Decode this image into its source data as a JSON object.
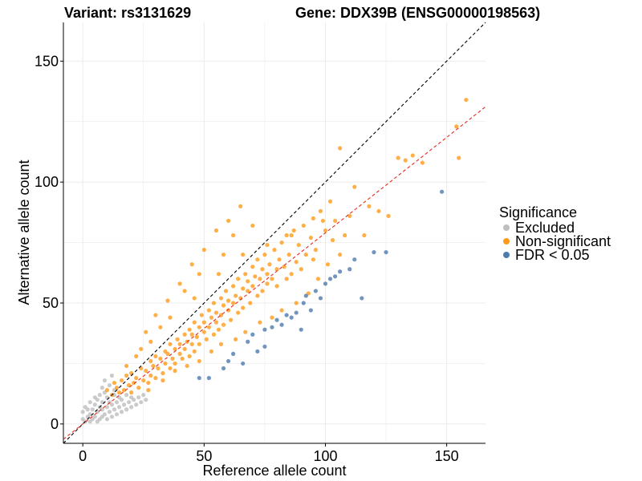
{
  "chart_data": {
    "type": "scatter",
    "title_left": "Variant: rs3131629",
    "title_right": "Gene: DDX39B (ENSG00000198563)",
    "xlabel": "Reference allele count",
    "ylabel": "Alternative allele count",
    "xlim": [
      -8,
      166
    ],
    "ylim": [
      -8,
      166
    ],
    "xticks": [
      0,
      50,
      100,
      150
    ],
    "yticks": [
      0,
      50,
      100,
      150
    ],
    "grid": true,
    "legend": {
      "title": "Significance",
      "placement": "right",
      "entries": [
        {
          "name": "Excluded",
          "color": "#BEBEBE"
        },
        {
          "name": "Non-significant",
          "color": "#FF9B19"
        },
        {
          "name": "FDR < 0.05",
          "color": "#4E7BAE"
        }
      ]
    },
    "reference_lines": [
      {
        "name": "identity",
        "color": "#000000",
        "dash": "dashed",
        "slope": 1.0,
        "intercept": 0
      },
      {
        "name": "fitted",
        "color": "#E8281E",
        "dash": "dashed",
        "slope": 0.79,
        "intercept": 0
      }
    ],
    "series": [
      {
        "name": "Excluded",
        "color": "#BEBEBE",
        "points": [
          [
            0,
            2
          ],
          [
            0,
            5
          ],
          [
            1,
            1
          ],
          [
            1,
            7
          ],
          [
            2,
            3
          ],
          [
            2,
            6
          ],
          [
            3,
            1
          ],
          [
            3,
            4
          ],
          [
            3,
            9
          ],
          [
            4,
            2
          ],
          [
            4,
            6
          ],
          [
            5,
            3
          ],
          [
            5,
            8
          ],
          [
            5,
            11
          ],
          [
            6,
            1
          ],
          [
            6,
            5
          ],
          [
            6,
            10
          ],
          [
            7,
            2
          ],
          [
            7,
            7
          ],
          [
            7,
            12
          ],
          [
            8,
            3
          ],
          [
            8,
            6
          ],
          [
            8,
            9
          ],
          [
            9,
            4
          ],
          [
            9,
            13
          ],
          [
            10,
            2
          ],
          [
            10,
            7
          ],
          [
            10,
            11
          ],
          [
            11,
            5
          ],
          [
            11,
            9
          ],
          [
            12,
            3
          ],
          [
            12,
            8
          ],
          [
            13,
            6
          ],
          [
            13,
            12
          ],
          [
            14,
            4
          ],
          [
            14,
            9
          ],
          [
            15,
            7
          ],
          [
            15,
            11
          ],
          [
            16,
            5
          ],
          [
            16,
            10
          ],
          [
            17,
            8
          ],
          [
            18,
            6
          ],
          [
            18,
            12
          ],
          [
            19,
            9
          ],
          [
            20,
            7
          ],
          [
            20,
            11
          ],
          [
            21,
            10
          ],
          [
            22,
            8
          ],
          [
            23,
            11
          ],
          [
            24,
            9
          ],
          [
            25,
            12
          ],
          [
            26,
            10
          ],
          [
            8,
            15
          ],
          [
            9,
            18
          ],
          [
            11,
            16
          ],
          [
            13,
            14
          ],
          [
            12,
            20
          ]
        ]
      },
      {
        "name": "Non-significant",
        "color": "#FF9B19",
        "points": [
          [
            10,
            14
          ],
          [
            12,
            12
          ],
          [
            13,
            17
          ],
          [
            14,
            15
          ],
          [
            15,
            13
          ],
          [
            16,
            18
          ],
          [
            17,
            14
          ],
          [
            18,
            20
          ],
          [
            19,
            16
          ],
          [
            20,
            13
          ],
          [
            20,
            21
          ],
          [
            21,
            17
          ],
          [
            22,
            19
          ],
          [
            23,
            15
          ],
          [
            24,
            23
          ],
          [
            25,
            18
          ],
          [
            26,
            22
          ],
          [
            27,
            17
          ],
          [
            28,
            26
          ],
          [
            28,
            20
          ],
          [
            29,
            24
          ],
          [
            30,
            19
          ],
          [
            30,
            28
          ],
          [
            31,
            23
          ],
          [
            32,
            27
          ],
          [
            33,
            21
          ],
          [
            34,
            30
          ],
          [
            34,
            25
          ],
          [
            35,
            29
          ],
          [
            36,
            23
          ],
          [
            36,
            33
          ],
          [
            37,
            27
          ],
          [
            38,
            31
          ],
          [
            38,
            25
          ],
          [
            39,
            35
          ],
          [
            40,
            29
          ],
          [
            40,
            33
          ],
          [
            41,
            27
          ],
          [
            42,
            37
          ],
          [
            42,
            31
          ],
          [
            43,
            34
          ],
          [
            44,
            28
          ],
          [
            44,
            39
          ],
          [
            45,
            33
          ],
          [
            45,
            37
          ],
          [
            46,
            30
          ],
          [
            46,
            42
          ],
          [
            47,
            36
          ],
          [
            48,
            40
          ],
          [
            48,
            33
          ],
          [
            49,
            45
          ],
          [
            50,
            38
          ],
          [
            50,
            42
          ],
          [
            51,
            35
          ],
          [
            52,
            47
          ],
          [
            52,
            40
          ],
          [
            53,
            44
          ],
          [
            54,
            37
          ],
          [
            54,
            50
          ],
          [
            55,
            42
          ],
          [
            55,
            46
          ],
          [
            56,
            39
          ],
          [
            57,
            52
          ],
          [
            57,
            45
          ],
          [
            58,
            49
          ],
          [
            58,
            41
          ],
          [
            59,
            55
          ],
          [
            60,
            47
          ],
          [
            60,
            51
          ],
          [
            61,
            43
          ],
          [
            62,
            57
          ],
          [
            62,
            50
          ],
          [
            63,
            53
          ],
          [
            64,
            46
          ],
          [
            64,
            60
          ],
          [
            65,
            52
          ],
          [
            66,
            56
          ],
          [
            66,
            48
          ],
          [
            67,
            62
          ],
          [
            68,
            55
          ],
          [
            68,
            59
          ],
          [
            69,
            50
          ],
          [
            70,
            65
          ],
          [
            70,
            57
          ],
          [
            71,
            61
          ],
          [
            72,
            53
          ],
          [
            72,
            68
          ],
          [
            73,
            60
          ],
          [
            74,
            64
          ],
          [
            74,
            55
          ],
          [
            75,
            70
          ],
          [
            76,
            62
          ],
          [
            76,
            58
          ],
          [
            77,
            66
          ],
          [
            78,
            60
          ],
          [
            79,
            72
          ],
          [
            80,
            64
          ],
          [
            80,
            57
          ],
          [
            81,
            68
          ],
          [
            82,
            75
          ],
          [
            83,
            65
          ],
          [
            84,
            60
          ],
          [
            84,
            78
          ],
          [
            85,
            70
          ],
          [
            86,
            62
          ],
          [
            87,
            80
          ],
          [
            88,
            67
          ],
          [
            89,
            74
          ],
          [
            90,
            64
          ],
          [
            91,
            82
          ],
          [
            92,
            70
          ],
          [
            94,
            77
          ],
          [
            95,
            85
          ],
          [
            96,
            72
          ],
          [
            98,
            88
          ],
          [
            100,
            80
          ],
          [
            102,
            92
          ],
          [
            104,
            84
          ],
          [
            106,
            114
          ],
          [
            110,
            86
          ],
          [
            112,
            98
          ],
          [
            116,
            78
          ],
          [
            118,
            90
          ],
          [
            122,
            88
          ],
          [
            126,
            86
          ],
          [
            130,
            110
          ],
          [
            133,
            109
          ],
          [
            136,
            111
          ],
          [
            140,
            108
          ],
          [
            154,
            123
          ],
          [
            155,
            110
          ],
          [
            158,
            134
          ],
          [
            26,
            38
          ],
          [
            30,
            45
          ],
          [
            35,
            51
          ],
          [
            40,
            58
          ],
          [
            45,
            66
          ],
          [
            50,
            72
          ],
          [
            55,
            80
          ],
          [
            60,
            84
          ],
          [
            65,
            90
          ],
          [
            62,
            78
          ],
          [
            70,
            82
          ],
          [
            58,
            70
          ],
          [
            48,
            62
          ],
          [
            42,
            55
          ],
          [
            32,
            40
          ],
          [
            28,
            34
          ],
          [
            36,
            44
          ],
          [
            46,
            52
          ],
          [
            56,
            62
          ],
          [
            66,
            70
          ],
          [
            76,
            74
          ],
          [
            86,
            78
          ],
          [
            18,
            24
          ],
          [
            22,
            28
          ],
          [
            24,
            31
          ],
          [
            27,
            14
          ],
          [
            33,
            18
          ],
          [
            38,
            22
          ],
          [
            43,
            24
          ],
          [
            48,
            26
          ],
          [
            53,
            30
          ],
          [
            57,
            33
          ],
          [
            63,
            35
          ],
          [
            67,
            38
          ],
          [
            73,
            42
          ],
          [
            78,
            44
          ],
          [
            82,
            47
          ],
          [
            88,
            50
          ],
          [
            93,
            54
          ],
          [
            97,
            60
          ],
          [
            101,
            66
          ],
          [
            106,
            70
          ],
          [
            103,
            76
          ],
          [
            99,
            84
          ],
          [
            108,
            78
          ],
          [
            95,
            68
          ]
        ]
      },
      {
        "name": "FDR < 0.05",
        "color": "#4E7BAE",
        "points": [
          [
            48,
            19
          ],
          [
            52,
            19
          ],
          [
            58,
            23
          ],
          [
            60,
            26
          ],
          [
            62,
            29
          ],
          [
            66,
            25
          ],
          [
            68,
            34
          ],
          [
            70,
            37
          ],
          [
            72,
            30
          ],
          [
            75,
            39
          ],
          [
            75,
            32
          ],
          [
            78,
            40
          ],
          [
            80,
            43
          ],
          [
            82,
            41
          ],
          [
            84,
            45
          ],
          [
            86,
            44
          ],
          [
            88,
            46
          ],
          [
            90,
            39
          ],
          [
            91,
            50
          ],
          [
            92,
            53
          ],
          [
            94,
            47
          ],
          [
            96,
            55
          ],
          [
            98,
            52
          ],
          [
            100,
            58
          ],
          [
            102,
            60
          ],
          [
            104,
            61
          ],
          [
            106,
            63
          ],
          [
            110,
            64
          ],
          [
            112,
            68
          ],
          [
            115,
            52
          ],
          [
            120,
            71
          ],
          [
            125,
            71
          ],
          [
            148,
            96
          ]
        ]
      }
    ]
  }
}
